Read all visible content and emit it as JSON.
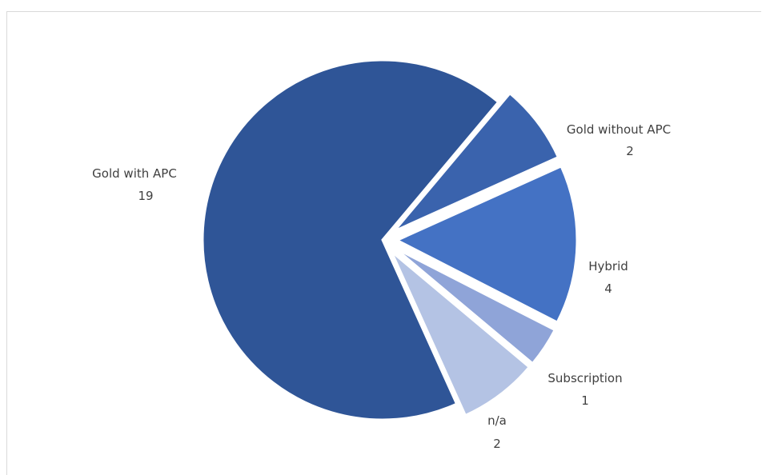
{
  "chart_data": {
    "type": "pie",
    "title": "",
    "categories": [
      "Gold with APC",
      "Gold without APC",
      "Hybrid",
      "Subscription",
      "n/a"
    ],
    "values": [
      19,
      2,
      4,
      1,
      2
    ],
    "colors": [
      "#2f5597",
      "#3a63ad",
      "#4472c4",
      "#8fa4d8",
      "#b4c3e4"
    ],
    "legend": "none",
    "exploded": true,
    "data_labels": [
      {
        "name": "Gold with APC",
        "value": "19"
      },
      {
        "name": "Gold without APC",
        "value": "2"
      },
      {
        "name": "Hybrid",
        "value": "4"
      },
      {
        "name": "Subscription",
        "value": "1"
      },
      {
        "name": "n/a",
        "value": "2"
      }
    ]
  }
}
